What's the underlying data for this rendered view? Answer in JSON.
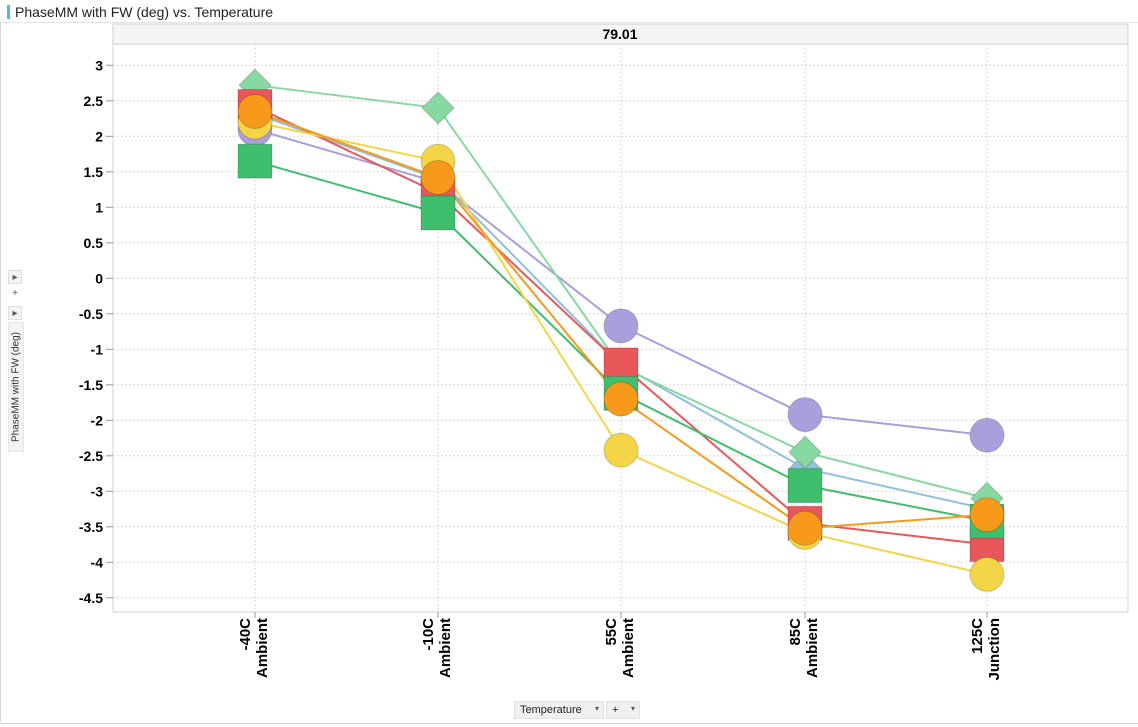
{
  "window": {
    "title": "PhaseMM with FW (deg) vs. Temperature"
  },
  "side_controls": {
    "expand_glyph": "▸",
    "plus_glyph": "+"
  },
  "y_axis_control": {
    "label": "PhaseMM with FW (deg)"
  },
  "x_axis_control": {
    "label": "Temperature",
    "dropdown_glyph": "▾",
    "add_glyph": "+"
  },
  "chart_data": {
    "type": "line",
    "panel_header": "79.01",
    "categories": [
      [
        "-40C",
        "Ambient"
      ],
      [
        "-10C",
        "Ambient"
      ],
      [
        "55C",
        "Ambient"
      ],
      [
        "85C",
        "Ambient"
      ],
      [
        "125C",
        "Junction"
      ]
    ],
    "ylim": [
      -4.7,
      3.3
    ],
    "yticks": [
      3,
      2.5,
      2,
      1.5,
      1,
      0.5,
      0,
      -0.5,
      -1,
      -1.5,
      -2,
      -2.5,
      -3,
      -3.5,
      -4,
      -4.5
    ],
    "ytick_labels": [
      "3",
      "2.5",
      "2",
      "1.5",
      "1",
      "0.5",
      "0",
      "-0.5",
      "-1",
      "-1.5",
      "-2",
      "-2.5",
      "-3",
      "-3.5",
      "-4",
      "-4.5"
    ],
    "grid": true,
    "series": [
      {
        "color": "#a99fdd",
        "marker": "circle",
        "values": [
          2.1,
          1.35,
          -0.67,
          -1.92,
          -2.21
        ]
      },
      {
        "color": "#8fc1d9",
        "marker": "diamond",
        "values": [
          2.32,
          1.4,
          -1.22,
          -2.68,
          -3.25
        ]
      },
      {
        "color": "#88d8a1",
        "marker": "diamond",
        "values": [
          2.72,
          2.4,
          -1.25,
          -2.45,
          -3.1
        ]
      },
      {
        "color": "#e8585a",
        "marker": "square",
        "values": [
          2.42,
          1.2,
          -1.22,
          -3.45,
          -3.75
        ]
      },
      {
        "color": "#3fbf6e",
        "marker": "square",
        "values": [
          1.65,
          0.92,
          -1.62,
          -2.92,
          -3.42
        ]
      },
      {
        "color": "#f5d548",
        "marker": "circle",
        "values": [
          2.2,
          1.65,
          -2.42,
          -3.58,
          -4.17
        ]
      },
      {
        "color": "#f7991b",
        "marker": "circle",
        "values": [
          2.35,
          1.42,
          -1.7,
          -3.52,
          -3.33
        ]
      }
    ]
  }
}
